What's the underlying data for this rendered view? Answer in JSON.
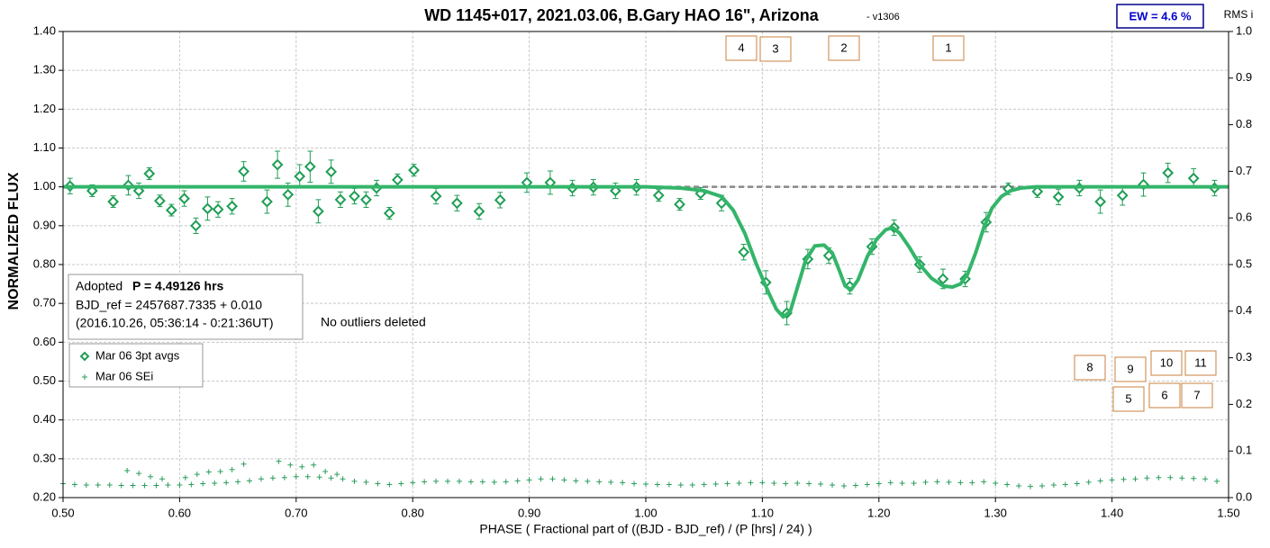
{
  "chart_data": {
    "type": "scatter",
    "title": "WD 1145+017, 2021.03.06, B.Gary HAO 16\", Arizona",
    "version_note": "- v1306",
    "ew_label": "EW = 4.6 %",
    "xlabel": "PHASE ( Fractional part of ((BJD - BJD_ref) / (P [hrs] / 24) )",
    "ylabel": "NORMALIZED FLUX",
    "y2label": "RMS i",
    "xlim": [
      0.5,
      1.5
    ],
    "ylim": [
      0.2,
      1.4
    ],
    "y2lim": [
      0,
      1
    ],
    "xticks": [
      {
        "value": 0.5,
        "label": "0.50"
      },
      {
        "value": 0.6,
        "label": "0.60"
      },
      {
        "value": 0.7,
        "label": "0.70"
      },
      {
        "value": 0.8,
        "label": "0.80"
      },
      {
        "value": 0.9,
        "label": "0.90"
      },
      {
        "value": 1.0,
        "label": "1.00"
      },
      {
        "value": 1.1,
        "label": "1.10"
      },
      {
        "value": 1.2,
        "label": "1.20"
      },
      {
        "value": 1.3,
        "label": "1.30"
      },
      {
        "value": 1.4,
        "label": "1.40"
      },
      {
        "value": 1.5,
        "label": "1.50"
      }
    ],
    "yticks": [
      {
        "value": 0.2,
        "label": "0.20"
      },
      {
        "value": 0.3,
        "label": "0.30"
      },
      {
        "value": 0.4,
        "label": "0.40"
      },
      {
        "value": 0.5,
        "label": "0.50"
      },
      {
        "value": 0.6,
        "label": "0.60"
      },
      {
        "value": 0.7,
        "label": "0.70"
      },
      {
        "value": 0.8,
        "label": "0.80"
      },
      {
        "value": 0.9,
        "label": "0.90"
      },
      {
        "value": 1.0,
        "label": "1.00"
      },
      {
        "value": 1.1,
        "label": "1.10"
      },
      {
        "value": 1.2,
        "label": "1.20"
      },
      {
        "value": 1.3,
        "label": "1.30"
      },
      {
        "value": 1.4,
        "label": "1.40"
      }
    ],
    "y2ticks": [
      {
        "value": 0,
        "label": "0.0"
      },
      0.1,
      0.2,
      0.3,
      0.4,
      0.5,
      0.6,
      0.7,
      0.8,
      0.9,
      {
        "value": 1,
        "label": "1.0"
      }
    ],
    "grid": true,
    "baseline": {
      "value": 1.0,
      "color": "#888888"
    },
    "period_prefix": "Adopted",
    "period": "P = 4.49126 hrs",
    "bjd_ref": "BJD_ref = 2457687.7335 + 0.010",
    "date_note": "(2016.10.26, 05:36:14 - 0:21:36UT)",
    "outlier_note": "No outliers deleted",
    "event_markers": [
      "4",
      "3",
      "2",
      "1",
      "8",
      "9",
      "10",
      "11",
      "5",
      "6",
      "7"
    ],
    "series": [
      {
        "name": "Mar 06 3pt avgs",
        "style": "diamonds",
        "color": "#1f9e55",
        "x": [
          0.506,
          0.525,
          0.543,
          0.556,
          0.565,
          0.574,
          0.583,
          0.593,
          0.604,
          0.614,
          0.624,
          0.633,
          0.645,
          0.655,
          0.675,
          0.684,
          0.693,
          0.703,
          0.712,
          0.719,
          0.73,
          0.738,
          0.75,
          0.76,
          0.769,
          0.78,
          0.787,
          0.801,
          0.82,
          0.838,
          0.857,
          0.875,
          0.898,
          0.918,
          0.937,
          0.955,
          0.974,
          0.992,
          1.011,
          1.029,
          1.047,
          1.065,
          1.084,
          1.103,
          1.121,
          1.139,
          1.157,
          1.175,
          1.194,
          1.213,
          1.235,
          1.255,
          1.274,
          1.292,
          1.311,
          1.336,
          1.354,
          1.372,
          1.39,
          1.409,
          1.427,
          1.448,
          1.47,
          1.488
        ],
        "values": [
          1.002,
          0.99,
          0.962,
          1.004,
          0.99,
          1.034,
          0.964,
          0.94,
          0.97,
          0.9,
          0.944,
          0.942,
          0.95,
          1.04,
          0.962,
          1.057,
          0.98,
          1.027,
          1.052,
          0.937,
          1.039,
          0.967,
          0.976,
          0.967,
          0.997,
          0.932,
          1.018,
          1.043,
          0.976,
          0.958,
          0.937,
          0.966,
          1.011,
          1.011,
          0.997,
          0.999,
          0.99,
          0.999,
          0.978,
          0.955,
          0.983,
          0.958,
          0.832,
          0.754,
          0.675,
          0.814,
          0.823,
          0.744,
          0.846,
          0.895,
          0.8,
          0.763,
          0.763,
          0.909,
          0.995,
          0.988,
          0.974,
          0.997,
          0.962,
          0.978,
          1.006,
          1.036,
          1.022,
          0.997
        ],
        "errors": [
          0.02,
          0.015,
          0.015,
          0.025,
          0.02,
          0.015,
          0.015,
          0.015,
          0.02,
          0.02,
          0.03,
          0.02,
          0.02,
          0.025,
          0.03,
          0.035,
          0.03,
          0.03,
          0.04,
          0.03,
          0.03,
          0.02,
          0.02,
          0.02,
          0.02,
          0.015,
          0.015,
          0.015,
          0.02,
          0.02,
          0.02,
          0.02,
          0.025,
          0.03,
          0.02,
          0.02,
          0.02,
          0.02,
          0.015,
          0.015,
          0.015,
          0.02,
          0.02,
          0.03,
          0.03,
          0.025,
          0.02,
          0.02,
          0.02,
          0.02,
          0.02,
          0.025,
          0.02,
          0.025,
          0.015,
          0.015,
          0.02,
          0.02,
          0.03,
          0.025,
          0.03,
          0.025,
          0.025,
          0.02
        ]
      },
      {
        "style": "line",
        "color": "#33b56a",
        "x": [
          0.5,
          0.6,
          0.7,
          0.8,
          0.9,
          1.0,
          1.03,
          1.05,
          1.065,
          1.075,
          1.085,
          1.095,
          1.105,
          1.112,
          1.118,
          1.124,
          1.13,
          1.137,
          1.145,
          1.153,
          1.16,
          1.166,
          1.171,
          1.176,
          1.182,
          1.19,
          1.198,
          1.206,
          1.212,
          1.218,
          1.226,
          1.235,
          1.245,
          1.255,
          1.263,
          1.27,
          1.276,
          1.283,
          1.29,
          1.297,
          1.305,
          1.313,
          1.322,
          1.335,
          1.35,
          1.37,
          1.4,
          1.45,
          1.5
        ],
        "values": [
          1.0,
          1.0,
          1.0,
          1.0,
          1.0,
          1.0,
          0.997,
          0.99,
          0.975,
          0.94,
          0.88,
          0.8,
          0.73,
          0.685,
          0.665,
          0.68,
          0.74,
          0.81,
          0.848,
          0.85,
          0.83,
          0.785,
          0.745,
          0.735,
          0.76,
          0.82,
          0.865,
          0.89,
          0.895,
          0.88,
          0.845,
          0.8,
          0.765,
          0.745,
          0.742,
          0.75,
          0.775,
          0.83,
          0.895,
          0.945,
          0.975,
          0.99,
          0.997,
          1.0,
          1.0,
          1.0,
          1.0,
          1.0,
          1.0
        ]
      },
      {
        "name": "Mar 06 SEi",
        "style": "crosses",
        "axis": "y2",
        "color": "#2a9d5c",
        "x": [
          0.5,
          0.51,
          0.52,
          0.53,
          0.54,
          0.55,
          0.56,
          0.57,
          0.58,
          0.59,
          0.6,
          0.61,
          0.62,
          0.63,
          0.64,
          0.65,
          0.66,
          0.67,
          0.68,
          0.69,
          0.7,
          0.71,
          0.72,
          0.73,
          0.74,
          0.75,
          0.76,
          0.77,
          0.78,
          0.79,
          0.8,
          0.81,
          0.82,
          0.83,
          0.84,
          0.85,
          0.86,
          0.87,
          0.88,
          0.89,
          0.9,
          0.91,
          0.92,
          0.93,
          0.94,
          0.95,
          0.96,
          0.97,
          0.98,
          0.99,
          1.0,
          1.01,
          1.02,
          1.03,
          1.04,
          1.05,
          1.06,
          1.07,
          1.08,
          1.09,
          1.1,
          1.11,
          1.12,
          1.13,
          1.14,
          1.15,
          1.16,
          1.17,
          1.18,
          1.19,
          1.2,
          1.21,
          1.22,
          1.23,
          1.24,
          1.25,
          1.26,
          1.27,
          1.28,
          1.29,
          1.3,
          1.31,
          1.32,
          1.33,
          1.34,
          1.35,
          1.36,
          1.37,
          1.38,
          1.39,
          1.4,
          1.41,
          1.42,
          1.43,
          1.44,
          1.45,
          1.46,
          1.47,
          1.48,
          1.49,
          0.555,
          0.565,
          0.575,
          0.585,
          0.605,
          0.615,
          0.625,
          0.635,
          0.645,
          0.655,
          0.685,
          0.695,
          0.705,
          0.715,
          0.725,
          0.735
        ],
        "values": [
          0.03,
          0.028,
          0.027,
          0.027,
          0.027,
          0.026,
          0.026,
          0.026,
          0.026,
          0.027,
          0.027,
          0.028,
          0.03,
          0.031,
          0.032,
          0.034,
          0.036,
          0.04,
          0.042,
          0.043,
          0.045,
          0.045,
          0.044,
          0.042,
          0.04,
          0.035,
          0.033,
          0.03,
          0.028,
          0.03,
          0.032,
          0.034,
          0.035,
          0.035,
          0.035,
          0.034,
          0.034,
          0.033,
          0.034,
          0.036,
          0.038,
          0.04,
          0.04,
          0.038,
          0.036,
          0.035,
          0.034,
          0.033,
          0.032,
          0.03,
          0.029,
          0.028,
          0.028,
          0.027,
          0.027,
          0.028,
          0.029,
          0.03,
          0.031,
          0.032,
          0.032,
          0.031,
          0.03,
          0.031,
          0.03,
          0.029,
          0.027,
          0.025,
          0.026,
          0.028,
          0.03,
          0.032,
          0.031,
          0.031,
          0.033,
          0.034,
          0.033,
          0.032,
          0.032,
          0.034,
          0.031,
          0.028,
          0.025,
          0.024,
          0.025,
          0.027,
          0.028,
          0.03,
          0.033,
          0.036,
          0.038,
          0.039,
          0.04,
          0.042,
          0.043,
          0.043,
          0.042,
          0.041,
          0.04,
          0.035,
          0.058,
          0.052,
          0.045,
          0.04,
          0.043,
          0.05,
          0.055,
          0.056,
          0.06,
          0.072,
          0.078,
          0.07,
          0.066,
          0.07,
          0.056,
          0.05
        ]
      }
    ]
  }
}
